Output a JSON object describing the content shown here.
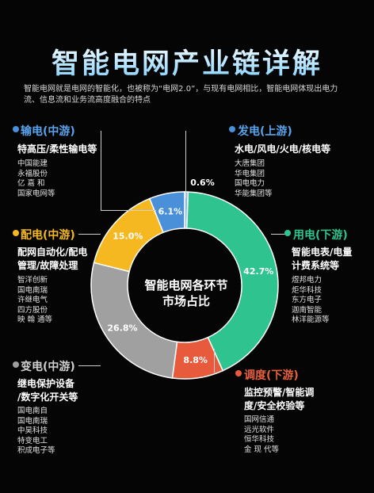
{
  "title": "智能电网产业链详解",
  "intro": "智能电网就是电网的智能化，也被称为“电网2.0”，与现有电网相比，智能电网体现出电力流、信息流和业务流高度融合的特点",
  "center_label_line1": "智能电网各环节",
  "center_label_line2": "市场占比",
  "segments": {
    "transmission": {
      "name": "输电(中游)",
      "products": "特高压/柔性输电等",
      "companies": [
        "中国能建",
        "永福股份",
        "亿 嘉 和",
        "国家电网等"
      ],
      "color": "#4a90d9"
    },
    "generation": {
      "name": "发电(上游)",
      "products": "水电/风电/火电/核电等",
      "companies": [
        "大唐集团",
        "华电集团",
        "国电电力",
        "华能集团等"
      ],
      "color": "#4a90d9"
    },
    "distribution": {
      "name": "配电(中游)",
      "products_line1": "配网自动化/配电",
      "products_line2": "管理/故障处理",
      "companies": [
        "智洋创新",
        "国电南瑞",
        "许继电气",
        "四方股份",
        "映 翰 通等"
      ],
      "color": "#f5b820"
    },
    "consumption": {
      "name": "用电(下游)",
      "products_line1": "智能电表/电量",
      "products_line2": "计费系统等",
      "companies": [
        "煜邦电力",
        "炬华科技",
        "东方电子",
        "迦南智能",
        "林洋能源等"
      ],
      "color": "#2fc48f"
    },
    "substation": {
      "name": "变电(中游)",
      "products_line1": "继电保护设备",
      "products_line2": "/数字化开关等",
      "companies": [
        "国电南自",
        "国电南瑞",
        "中昊科技",
        "特变电工",
        "积成电子等"
      ],
      "color": "#9e9e9e"
    },
    "dispatch": {
      "name": "调度(下游)",
      "products_line1": "监控预警/智能调",
      "products_line2": "度/安全校验等",
      "companies": [
        "国网信通",
        "远光软件",
        "恒华科技",
        "金 现 代等"
      ],
      "color": "#e85a3c"
    }
  },
  "chart_data": {
    "type": "pie",
    "title": "智能电网各环节市场占比",
    "categories": [
      "发电(上游)",
      "用电(下游)",
      "调度(下游)",
      "变电(中游)",
      "配电(中游)",
      "输电(中游)"
    ],
    "values": [
      0.6,
      42.7,
      8.8,
      26.8,
      15.0,
      6.1
    ],
    "labels": [
      "0.6%",
      "42.7%",
      "8.8%",
      "26.8%",
      "15.0%",
      "6.1%"
    ],
    "colors": [
      "#8fb8e0",
      "#2fc48f",
      "#e85a3c",
      "#a0a0a0",
      "#f5b820",
      "#4a90d9"
    ],
    "donut": true
  }
}
